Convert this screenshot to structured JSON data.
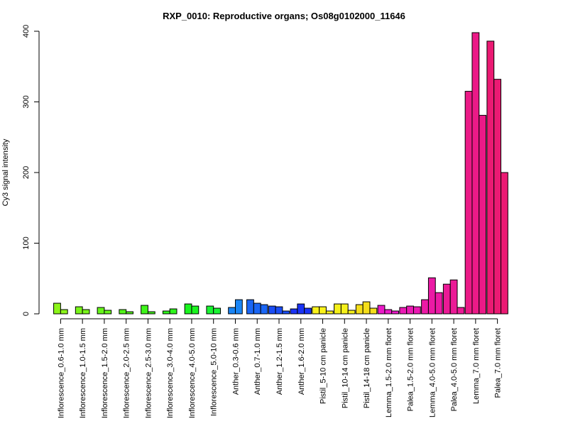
{
  "chart_data": {
    "type": "bar",
    "title": "RXP_0010: Reproductive organs; Os08g0102000_11646",
    "xlabel": "",
    "ylabel": "Cy3 signal intensity",
    "ylim": [
      0,
      400
    ],
    "yticks": [
      0,
      100,
      200,
      300,
      400
    ],
    "grid": false,
    "legend": "none",
    "groups": [
      {
        "label": "Inflorescence_0.6-1.0 mm",
        "color": "#8cf51a",
        "values": [
          15,
          6
        ]
      },
      {
        "label": "Inflorescence_1.0-1.5 mm",
        "color": "#79f51a",
        "values": [
          10,
          6
        ]
      },
      {
        "label": "Inflorescence_1.5-2.0 mm",
        "color": "#66f51a",
        "values": [
          9,
          5
        ]
      },
      {
        "label": "Inflorescence_2.0-2.5 mm",
        "color": "#52f51a",
        "values": [
          6,
          3
        ]
      },
      {
        "label": "Inflorescence_2.5-3.0 mm",
        "color": "#3ff51a",
        "values": [
          12,
          3
        ]
      },
      {
        "label": "Inflorescence_3.0-4.0 mm",
        "color": "#2cf51a",
        "values": [
          4,
          7
        ]
      },
      {
        "label": "Inflorescence_4.0-5.0 mm",
        "color": "#1af51f",
        "values": [
          14,
          11
        ]
      },
      {
        "label": "Inflorescence_5.0-10 mm",
        "color": "#1af532",
        "values": [
          11,
          8
        ]
      },
      {
        "label": "Anther_0.3-0.6 mm",
        "color": "#1a85f5",
        "values": [
          9,
          20
        ]
      },
      {
        "label": "Anther_0.7-1.0 mm",
        "color": "#1a66f5",
        "values": [
          20,
          15,
          13
        ]
      },
      {
        "label": "Anther_1.2-1.5 mm",
        "color": "#1a4df5",
        "values": [
          11,
          10,
          4
        ]
      },
      {
        "label": "Anther_1.6-2.0 mm",
        "color": "#1a33f5",
        "values": [
          7,
          14,
          8
        ]
      },
      {
        "label": "Pistil_5-10 cm panicle",
        "color": "#faf21a",
        "values": [
          10,
          10,
          4
        ]
      },
      {
        "label": "Pistil_10-14 cm panicle",
        "color": "#f5f01a",
        "values": [
          14,
          14,
          5
        ]
      },
      {
        "label": "Pistil_14-18 cm panicle",
        "color": "#f5de1a",
        "values": [
          13,
          17,
          8
        ]
      },
      {
        "label": "Lemma_1.5-2.0 mm floret",
        "color": "#eb1ac8",
        "values": [
          12,
          6,
          4
        ]
      },
      {
        "label": "Palea_1.5-2.0 mm floret",
        "color": "#eb1ab4",
        "values": [
          9,
          11,
          10
        ]
      },
      {
        "label": "Lemma_4.0-5.0 mm floret",
        "color": "#eb1aa5",
        "values": [
          20,
          51,
          30
        ]
      },
      {
        "label": "Palea_4.0-5.0 mm floret",
        "color": "#eb1a96",
        "values": [
          42,
          48,
          9
        ]
      },
      {
        "label": "Lemma_7.0 mm floret",
        "color": "#eb1a87",
        "values": [
          315,
          398,
          281
        ]
      },
      {
        "label": "Palea_7.0 mm floret",
        "color": "#eb1a73",
        "values": [
          386,
          332,
          200
        ]
      }
    ]
  }
}
